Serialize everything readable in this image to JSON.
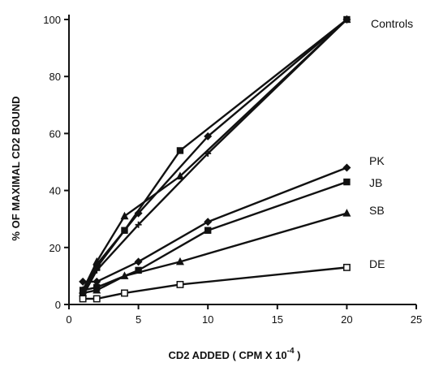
{
  "chart_data": {
    "type": "line",
    "title": "",
    "xlabel": "CD2 ADDED  ( CPM X 10",
    "xlabel_superscript": "-4",
    "xlabel_close": " )",
    "ylabel": "% OF MAXIMAL CD2 BOUND",
    "xlim": [
      0,
      25
    ],
    "ylim": [
      0,
      100
    ],
    "xticks": [
      0,
      5,
      10,
      15,
      20,
      25
    ],
    "yticks": [
      0,
      20,
      40,
      60,
      80,
      100
    ],
    "grid": false,
    "legend": "labels at right end of lines",
    "series": [
      {
        "name": "Controls",
        "marker": "square-filled",
        "points": [
          [
            1,
            3
          ],
          [
            2,
            13
          ],
          [
            4,
            26
          ],
          [
            8,
            54
          ],
          [
            20,
            100
          ]
        ]
      },
      {
        "name": "",
        "marker": "diamond-filled",
        "points": [
          [
            1,
            4
          ],
          [
            2,
            14
          ],
          [
            5,
            32
          ],
          [
            10,
            59
          ],
          [
            20,
            100
          ]
        ]
      },
      {
        "name": "",
        "marker": "triangle-filled",
        "points": [
          [
            1,
            5
          ],
          [
            2,
            15
          ],
          [
            4,
            31
          ],
          [
            8,
            45
          ],
          [
            20,
            100
          ]
        ]
      },
      {
        "name": "",
        "marker": "plus",
        "points": [
          [
            1,
            3
          ],
          [
            2,
            12
          ],
          [
            5,
            28
          ],
          [
            10,
            53
          ],
          [
            20,
            100
          ]
        ]
      },
      {
        "name": "PK",
        "marker": "diamond-filled",
        "points": [
          [
            1,
            8
          ],
          [
            2,
            8
          ],
          [
            5,
            15
          ],
          [
            10,
            29
          ],
          [
            20,
            48
          ]
        ]
      },
      {
        "name": "JB",
        "marker": "square-filled",
        "points": [
          [
            1,
            5
          ],
          [
            2,
            6
          ],
          [
            5,
            12
          ],
          [
            10,
            26
          ],
          [
            20,
            43
          ]
        ]
      },
      {
        "name": "SB",
        "marker": "triangle-filled",
        "points": [
          [
            1,
            4
          ],
          [
            2,
            5
          ],
          [
            4,
            10
          ],
          [
            8,
            15
          ],
          [
            20,
            32
          ]
        ]
      },
      {
        "name": "DE",
        "marker": "square-open",
        "points": [
          [
            1,
            2
          ],
          [
            2,
            2
          ],
          [
            4,
            4
          ],
          [
            8,
            7
          ],
          [
            20,
            13
          ]
        ]
      }
    ]
  }
}
